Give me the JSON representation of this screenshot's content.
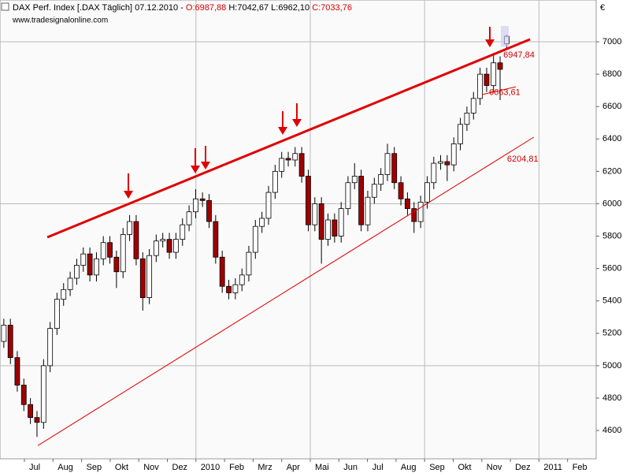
{
  "chart_data": {
    "type": "candlestick",
    "title": "DAX Perf. Index [.DAX  Täglich] 07.12.2010 -",
    "open_label": "O:6987,88",
    "high_low_label": "H:7042,67 L:6962,10",
    "close_label": "C:7033,76",
    "source": "www.tradesignalonline.com",
    "currency": "€",
    "x": [
      -0.72,
      -0.49,
      -0.25,
      -0.02,
      0.21,
      0.44,
      0.67,
      0.9,
      1.14,
      1.37,
      1.6,
      1.83,
      2.06,
      2.29,
      2.52,
      2.76,
      2.99,
      3.22,
      3.45,
      3.68,
      3.91,
      4.14,
      4.37,
      4.61,
      4.84,
      5.07,
      5.3,
      5.53,
      5.76,
      5.99,
      6.23,
      6.46,
      6.69,
      6.92,
      7.15,
      7.38,
      7.61,
      7.85,
      8.08,
      8.31,
      8.54,
      8.77,
      9.0,
      9.23,
      9.47,
      9.7,
      9.93,
      10.16,
      10.39,
      10.62,
      10.85,
      11.08,
      11.32,
      11.55,
      11.78,
      12.01,
      12.24,
      12.47,
      12.7,
      12.94,
      13.17,
      13.4,
      13.63,
      13.86,
      14.09,
      14.32,
      14.56,
      14.79,
      15.02,
      15.25,
      15.48,
      15.71,
      15.94,
      16.17,
      16.41,
      16.64,
      16.87
    ],
    "open": [
      5150,
      5250,
      5050,
      4880,
      4760,
      4680,
      4650,
      5000,
      5230,
      5410,
      5470,
      5540,
      5620,
      5690,
      5560,
      5660,
      5760,
      5670,
      5580,
      5810,
      5890,
      5660,
      5420,
      5680,
      5770,
      5780,
      5700,
      5780,
      5870,
      5950,
      6030,
      6020,
      5890,
      5670,
      5490,
      5450,
      5500,
      5560,
      5700,
      5860,
      5910,
      6070,
      6200,
      6280,
      6270,
      6310,
      6170,
      5870,
      6000,
      5780,
      5900,
      5800,
      5970,
      6130,
      6170,
      5870,
      6040,
      6120,
      6180,
      6310,
      6130,
      6030,
      5970,
      5890,
      6010,
      6130,
      6250,
      6260,
      6240,
      6370,
      6490,
      6560,
      6650,
      6800,
      6730,
      6870,
      6987.88
    ],
    "high": [
      5290,
      5290,
      5090,
      4920,
      4800,
      4720,
      5040,
      5270,
      5450,
      5510,
      5580,
      5660,
      5730,
      5730,
      5700,
      5800,
      5800,
      5710,
      5850,
      5930,
      5930,
      5700,
      5720,
      5810,
      5820,
      5820,
      5820,
      5910,
      5990,
      6090,
      6070,
      6060,
      5930,
      5710,
      5530,
      5540,
      5600,
      5740,
      5900,
      5950,
      6110,
      6240,
      6320,
      6320,
      6350,
      6350,
      6210,
      6040,
      6040,
      5940,
      5940,
      6010,
      6170,
      6250,
      6210,
      6080,
      6160,
      6220,
      6370,
      6350,
      6170,
      6070,
      6010,
      6050,
      6170,
      6290,
      6300,
      6300,
      6410,
      6530,
      6600,
      6690,
      6840,
      6840,
      6930,
      6910,
      7042.67
    ],
    "low": [
      5110,
      5010,
      4840,
      4720,
      4640,
      4560,
      4610,
      4960,
      5190,
      5370,
      5430,
      5500,
      5580,
      5520,
      5520,
      5620,
      5630,
      5480,
      5540,
      5770,
      5620,
      5340,
      5380,
      5640,
      5730,
      5660,
      5660,
      5740,
      5830,
      5910,
      5980,
      5850,
      5630,
      5450,
      5410,
      5410,
      5460,
      5520,
      5660,
      5820,
      5870,
      6030,
      6160,
      6230,
      6230,
      6130,
      5830,
      5830,
      5630,
      5740,
      5760,
      5760,
      5930,
      6090,
      5830,
      5830,
      6000,
      6080,
      6140,
      6090,
      5990,
      5930,
      5820,
      5850,
      5970,
      6090,
      6210,
      6140,
      6200,
      6330,
      6450,
      6520,
      6610,
      6690,
      6690,
      6640,
      6962.1
    ],
    "close": [
      5250,
      5050,
      4880,
      4760,
      4680,
      4650,
      5000,
      5230,
      5410,
      5470,
      5540,
      5620,
      5690,
      5560,
      5660,
      5760,
      5670,
      5580,
      5810,
      5890,
      5660,
      5420,
      5680,
      5770,
      5780,
      5700,
      5780,
      5870,
      5950,
      6030,
      6020,
      5890,
      5670,
      5490,
      5450,
      5500,
      5560,
      5700,
      5860,
      5910,
      6070,
      6200,
      6280,
      6270,
      6310,
      6170,
      5870,
      6000,
      5780,
      5900,
      5800,
      5970,
      6130,
      6170,
      5870,
      6040,
      6120,
      6180,
      6310,
      6130,
      6030,
      5970,
      5890,
      6010,
      6130,
      6250,
      6260,
      6240,
      6370,
      6490,
      6560,
      6650,
      6800,
      6730,
      6870,
      6830,
      7033.76
    ],
    "up_color": "#ffffff",
    "down_color": "#a00000",
    "xlim": [
      -0.854,
      20.0
    ],
    "xticks": [
      {
        "value": 0,
        "label": "Jul"
      },
      {
        "value": 1,
        "label": "Aug"
      },
      {
        "value": 2,
        "label": "Sep"
      },
      {
        "value": 3,
        "label": "Okt"
      },
      {
        "value": 4,
        "label": "Nov"
      },
      {
        "value": 5,
        "label": "Dez"
      },
      {
        "value": 6,
        "label": "2010"
      },
      {
        "value": 7,
        "label": "Feb"
      },
      {
        "value": 8,
        "label": "Mrz"
      },
      {
        "value": 9,
        "label": "Apr"
      },
      {
        "value": 10,
        "label": "Mai"
      },
      {
        "value": 11,
        "label": "Jun"
      },
      {
        "value": 12,
        "label": "Jul"
      },
      {
        "value": 13,
        "label": "Aug"
      },
      {
        "value": 14,
        "label": "Sep"
      },
      {
        "value": 15,
        "label": "Okt"
      },
      {
        "value": 16,
        "label": "Nov"
      },
      {
        "value": 17,
        "label": "Dez"
      },
      {
        "value": 18,
        "label": "2011"
      },
      {
        "value": 19,
        "label": "Feb"
      }
    ],
    "xgrid": [
      6,
      10,
      14,
      18
    ],
    "ylim": [
      4425,
      7258
    ],
    "yticks": [
      4600,
      4800,
      5000,
      5200,
      5400,
      5600,
      5800,
      6000,
      6200,
      6400,
      6600,
      6800,
      7000
    ],
    "ygrid": [
      5000,
      6000,
      7000
    ],
    "trendlines": [
      {
        "x": [
          0.8,
          17.69
        ],
        "y": [
          5793,
          7015
        ],
        "color": "#e00000",
        "width": 3,
        "label": "6947,84",
        "label_y": 6918
      },
      {
        "x": [
          16.01,
          17.19
        ],
        "y": [
          6674,
          6722
        ],
        "color": "#e00000",
        "width": 1,
        "label": "6663,61",
        "label_y": 6685
      },
      {
        "x": [
          0.47,
          17.82
        ],
        "y": [
          4507,
          6411
        ],
        "color": "#e00000",
        "width": 1,
        "label": "6204,81",
        "label_y": 6275
      }
    ]
  }
}
